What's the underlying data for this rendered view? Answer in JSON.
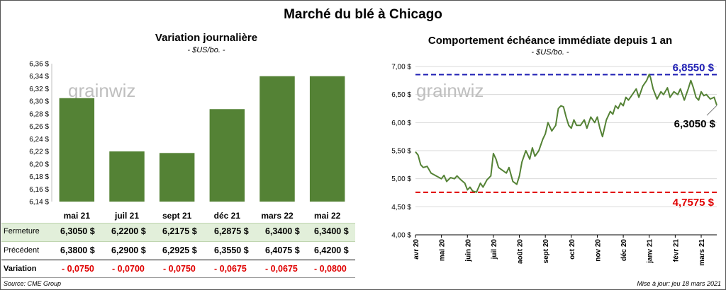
{
  "title": "Marché du blé à Chicago",
  "watermark": "grainwiz",
  "source": "Source: CME Group",
  "updated": "Mise à jour: jeu 18 mars 2021",
  "colors": {
    "bar": "#548235",
    "line": "#548235",
    "high_line": "#1f1fb4",
    "low_line": "#e00000",
    "negative": "#e00000",
    "band": "#e2efda"
  },
  "table": {
    "row_labels": {
      "close": "Fermeture",
      "previous": "Précédent",
      "variation": "Variation"
    },
    "close": [
      "6,3050 $",
      "6,2200 $",
      "6,2175 $",
      "6,2875 $",
      "6,3400 $",
      "6,3400 $"
    ],
    "previous": [
      "6,3800 $",
      "6,2900 $",
      "6,2925 $",
      "6,3550 $",
      "6,4075 $",
      "6,4200 $"
    ],
    "variation": [
      "- 0,0750",
      "- 0,0700",
      "- 0,0750",
      "- 0,0675",
      "- 0,0675",
      "- 0,0800"
    ]
  },
  "chart_data": [
    {
      "type": "bar",
      "title": "Variation journalière",
      "subtitle": "- $US/bo. -",
      "categories": [
        "mai 21",
        "juil 21",
        "sept 21",
        "déc 21",
        "mars 22",
        "mai 22"
      ],
      "values": [
        6.305,
        6.22,
        6.2175,
        6.2875,
        6.34,
        6.34
      ],
      "ylim": [
        6.14,
        6.36
      ],
      "yticks": [
        6.14,
        6.16,
        6.18,
        6.2,
        6.22,
        6.24,
        6.26,
        6.28,
        6.3,
        6.32,
        6.34,
        6.36
      ],
      "ytick_labels": [
        "6,14 $",
        "6,16 $",
        "6,18 $",
        "6,20 $",
        "6,22 $",
        "6,24 $",
        "6,26 $",
        "6,28 $",
        "6,30 $",
        "6,32 $",
        "6,34 $",
        "6,36 $"
      ]
    },
    {
      "type": "line",
      "title": "Comportement échéance immédiate depuis 1 an",
      "subtitle": "- $US/bo. -",
      "ylim": [
        4.0,
        7.0
      ],
      "yticks": [
        4.0,
        4.5,
        5.0,
        5.5,
        6.0,
        6.5,
        7.0
      ],
      "ytick_labels": [
        "4,00 $",
        "4,50 $",
        "5,00 $",
        "5,50 $",
        "6,00 $",
        "6,50 $",
        "7,00 $"
      ],
      "xlim": [
        0,
        11.6
      ],
      "xticks": [
        0,
        1,
        2,
        3,
        4,
        5,
        6,
        7,
        8,
        9,
        10,
        11
      ],
      "xtick_labels": [
        "avr 20",
        "mai 20",
        "juin 20",
        "juil 20",
        "août 20",
        "sept 20",
        "oct 20",
        "nov 20",
        "déc 20",
        "janv 21",
        "févr 21",
        "mars 21"
      ],
      "high": {
        "value": 6.855,
        "label": "6,8550 $"
      },
      "low": {
        "value": 4.7575,
        "label": "4,7575 $"
      },
      "last": {
        "value": 6.305,
        "label": "6,3050 $"
      },
      "x": [
        0,
        0.1,
        0.2,
        0.3,
        0.45,
        0.6,
        0.8,
        1.0,
        1.1,
        1.2,
        1.35,
        1.5,
        1.6,
        1.75,
        1.9,
        2.0,
        2.1,
        2.2,
        2.35,
        2.5,
        2.6,
        2.75,
        2.9,
        3.0,
        3.1,
        3.2,
        3.35,
        3.5,
        3.6,
        3.75,
        3.9,
        4.0,
        4.1,
        4.25,
        4.4,
        4.5,
        4.6,
        4.75,
        4.9,
        5.0,
        5.1,
        5.25,
        5.4,
        5.5,
        5.6,
        5.7,
        5.8,
        5.9,
        6.0,
        6.1,
        6.2,
        6.35,
        6.5,
        6.6,
        6.75,
        6.9,
        7.0,
        7.1,
        7.2,
        7.35,
        7.5,
        7.6,
        7.7,
        7.8,
        7.9,
        8.0,
        8.1,
        8.2,
        8.35,
        8.5,
        8.6,
        8.75,
        8.9,
        9.0,
        9.05,
        9.15,
        9.3,
        9.45,
        9.55,
        9.7,
        9.8,
        9.95,
        10.1,
        10.2,
        10.35,
        10.5,
        10.6,
        10.7,
        10.8,
        10.9,
        11.0,
        11.1,
        11.2,
        11.35,
        11.5,
        11.6
      ],
      "y": [
        5.48,
        5.42,
        5.25,
        5.2,
        5.22,
        5.1,
        5.05,
        5.0,
        5.06,
        4.95,
        5.02,
        5.0,
        5.05,
        4.98,
        4.92,
        4.8,
        4.85,
        4.78,
        4.76,
        4.92,
        4.85,
        4.98,
        5.05,
        5.45,
        5.35,
        5.2,
        5.15,
        5.1,
        5.2,
        4.95,
        4.9,
        5.05,
        5.3,
        5.5,
        5.35,
        5.55,
        5.4,
        5.5,
        5.7,
        5.8,
        6.0,
        5.85,
        5.95,
        6.25,
        6.3,
        6.28,
        6.1,
        5.95,
        5.9,
        6.05,
        5.95,
        5.95,
        6.05,
        5.9,
        6.1,
        6.0,
        6.1,
        5.9,
        5.75,
        6.05,
        6.2,
        6.15,
        6.3,
        6.25,
        6.35,
        6.3,
        6.45,
        6.4,
        6.5,
        6.6,
        6.45,
        6.65,
        6.75,
        6.86,
        6.8,
        6.6,
        6.42,
        6.55,
        6.5,
        6.62,
        6.45,
        6.55,
        6.5,
        6.6,
        6.4,
        6.6,
        6.75,
        6.62,
        6.45,
        6.4,
        6.55,
        6.48,
        6.5,
        6.42,
        6.45,
        6.31
      ]
    }
  ]
}
